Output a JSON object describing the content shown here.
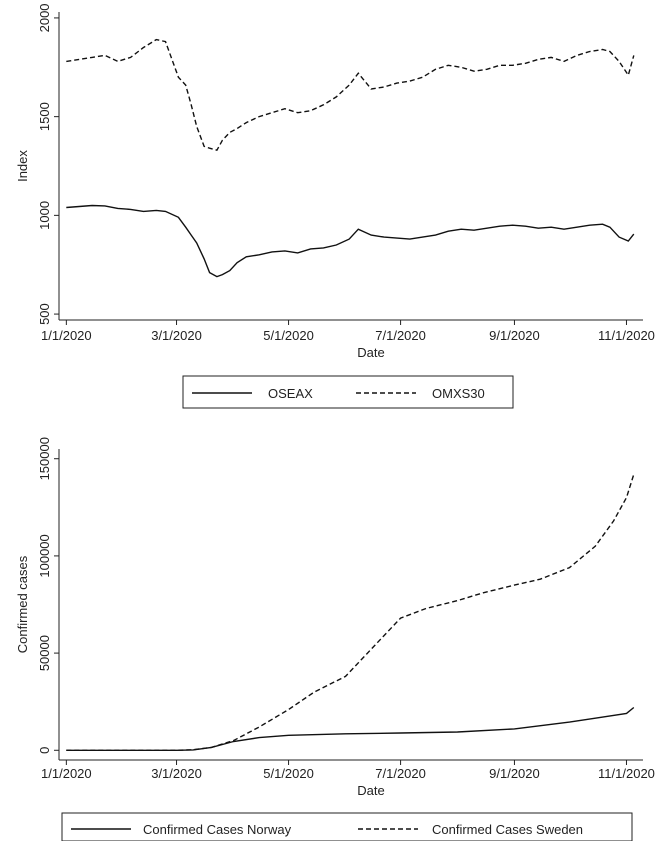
{
  "chart_data": [
    {
      "type": "line",
      "title": "",
      "xlabel": "Date",
      "ylabel": "Index",
      "xlim": [
        "2019-12-28",
        "2020-11-10"
      ],
      "ylim": [
        470,
        2030
      ],
      "x_ticks": [
        "1/1/2020",
        "3/1/2020",
        "5/1/2020",
        "7/1/2020",
        "9/1/2020",
        "11/1/2020"
      ],
      "x_tick_dates": [
        "2020-01-01",
        "2020-03-01",
        "2020-05-01",
        "2020-07-01",
        "2020-09-01",
        "2020-11-01"
      ],
      "y_ticks": [
        500,
        1000,
        1500,
        2000
      ],
      "y_tick_labels": [
        "500",
        "1000",
        "1500",
        "2000"
      ],
      "grid": true,
      "legend_position": "bottom",
      "series": [
        {
          "name": "OSEAX",
          "dash": "solid",
          "x": [
            "2020-01-01",
            "2020-01-08",
            "2020-01-15",
            "2020-01-22",
            "2020-01-29",
            "2020-02-05",
            "2020-02-12",
            "2020-02-19",
            "2020-02-24",
            "2020-03-02",
            "2020-03-06",
            "2020-03-09",
            "2020-03-12",
            "2020-03-16",
            "2020-03-19",
            "2020-03-23",
            "2020-03-26",
            "2020-03-30",
            "2020-04-03",
            "2020-04-08",
            "2020-04-15",
            "2020-04-22",
            "2020-04-29",
            "2020-05-06",
            "2020-05-13",
            "2020-05-20",
            "2020-05-27",
            "2020-06-03",
            "2020-06-08",
            "2020-06-15",
            "2020-06-22",
            "2020-06-29",
            "2020-07-06",
            "2020-07-13",
            "2020-07-20",
            "2020-07-27",
            "2020-08-03",
            "2020-08-10",
            "2020-08-17",
            "2020-08-24",
            "2020-08-31",
            "2020-09-07",
            "2020-09-14",
            "2020-09-21",
            "2020-09-28",
            "2020-10-05",
            "2020-10-12",
            "2020-10-19",
            "2020-10-23",
            "2020-10-28",
            "2020-11-02",
            "2020-11-05"
          ],
          "y": [
            1040,
            1045,
            1050,
            1048,
            1035,
            1030,
            1020,
            1025,
            1020,
            990,
            940,
            900,
            860,
            780,
            710,
            690,
            700,
            720,
            760,
            790,
            800,
            815,
            820,
            810,
            830,
            835,
            850,
            880,
            930,
            900,
            890,
            885,
            880,
            890,
            900,
            920,
            930,
            925,
            935,
            945,
            950,
            945,
            935,
            940,
            930,
            940,
            950,
            955,
            940,
            890,
            870,
            905
          ]
        },
        {
          "name": "OMXS30",
          "dash": "dashed",
          "x": [
            "2020-01-01",
            "2020-01-08",
            "2020-01-15",
            "2020-01-22",
            "2020-01-29",
            "2020-02-05",
            "2020-02-12",
            "2020-02-19",
            "2020-02-24",
            "2020-03-02",
            "2020-03-06",
            "2020-03-09",
            "2020-03-12",
            "2020-03-16",
            "2020-03-19",
            "2020-03-23",
            "2020-03-26",
            "2020-03-30",
            "2020-04-03",
            "2020-04-08",
            "2020-04-15",
            "2020-04-22",
            "2020-04-29",
            "2020-05-06",
            "2020-05-13",
            "2020-05-20",
            "2020-05-27",
            "2020-06-03",
            "2020-06-08",
            "2020-06-15",
            "2020-06-22",
            "2020-06-29",
            "2020-07-06",
            "2020-07-13",
            "2020-07-20",
            "2020-07-27",
            "2020-08-03",
            "2020-08-10",
            "2020-08-17",
            "2020-08-24",
            "2020-08-31",
            "2020-09-07",
            "2020-09-14",
            "2020-09-21",
            "2020-09-28",
            "2020-10-05",
            "2020-10-12",
            "2020-10-19",
            "2020-10-23",
            "2020-10-28",
            "2020-11-02",
            "2020-11-05"
          ],
          "y": [
            1780,
            1790,
            1800,
            1810,
            1780,
            1800,
            1850,
            1890,
            1880,
            1700,
            1660,
            1560,
            1450,
            1350,
            1340,
            1330,
            1380,
            1420,
            1440,
            1470,
            1500,
            1520,
            1540,
            1520,
            1530,
            1560,
            1600,
            1660,
            1720,
            1640,
            1650,
            1670,
            1680,
            1700,
            1740,
            1760,
            1750,
            1730,
            1740,
            1760,
            1760,
            1770,
            1790,
            1800,
            1780,
            1810,
            1830,
            1840,
            1830,
            1780,
            1710,
            1810
          ]
        }
      ]
    },
    {
      "type": "line",
      "title": "",
      "xlabel": "Date",
      "ylabel": "Confirmed cases",
      "xlim": [
        "2019-12-28",
        "2020-11-10"
      ],
      "ylim": [
        -5000,
        155000
      ],
      "x_ticks": [
        "1/1/2020",
        "3/1/2020",
        "5/1/2020",
        "7/1/2020",
        "9/1/2020",
        "11/1/2020"
      ],
      "x_tick_dates": [
        "2020-01-01",
        "2020-03-01",
        "2020-05-01",
        "2020-07-01",
        "2020-09-01",
        "2020-11-01"
      ],
      "y_ticks": [
        0,
        50000,
        100000,
        150000
      ],
      "y_tick_labels": [
        "0",
        "50000",
        "100000",
        "150000"
      ],
      "grid": true,
      "legend_position": "bottom",
      "series": [
        {
          "name": "Confirmed Cases Norway",
          "dash": "solid",
          "x": [
            "2020-01-01",
            "2020-02-01",
            "2020-03-01",
            "2020-03-10",
            "2020-03-20",
            "2020-04-01",
            "2020-04-15",
            "2020-05-01",
            "2020-06-01",
            "2020-07-01",
            "2020-08-01",
            "2020-09-01",
            "2020-10-01",
            "2020-10-15",
            "2020-11-01",
            "2020-11-05"
          ],
          "y": [
            0,
            0,
            0,
            200,
            1500,
            4500,
            6500,
            7700,
            8500,
            8900,
            9400,
            11000,
            14500,
            16500,
            19000,
            22000
          ]
        },
        {
          "name": "Confirmed Cases Sweden",
          "dash": "dashed",
          "x": [
            "2020-01-01",
            "2020-02-01",
            "2020-03-01",
            "2020-03-10",
            "2020-03-20",
            "2020-04-01",
            "2020-04-15",
            "2020-05-01",
            "2020-05-15",
            "2020-06-01",
            "2020-06-15",
            "2020-07-01",
            "2020-07-15",
            "2020-08-01",
            "2020-08-15",
            "2020-09-01",
            "2020-09-15",
            "2020-10-01",
            "2020-10-15",
            "2020-10-25",
            "2020-11-01",
            "2020-11-05"
          ],
          "y": [
            0,
            0,
            0,
            300,
            1500,
            5000,
            12000,
            21000,
            30000,
            38000,
            52000,
            68000,
            73000,
            77000,
            81000,
            85000,
            88000,
            94000,
            105000,
            118000,
            130000,
            142000
          ]
        }
      ]
    }
  ]
}
